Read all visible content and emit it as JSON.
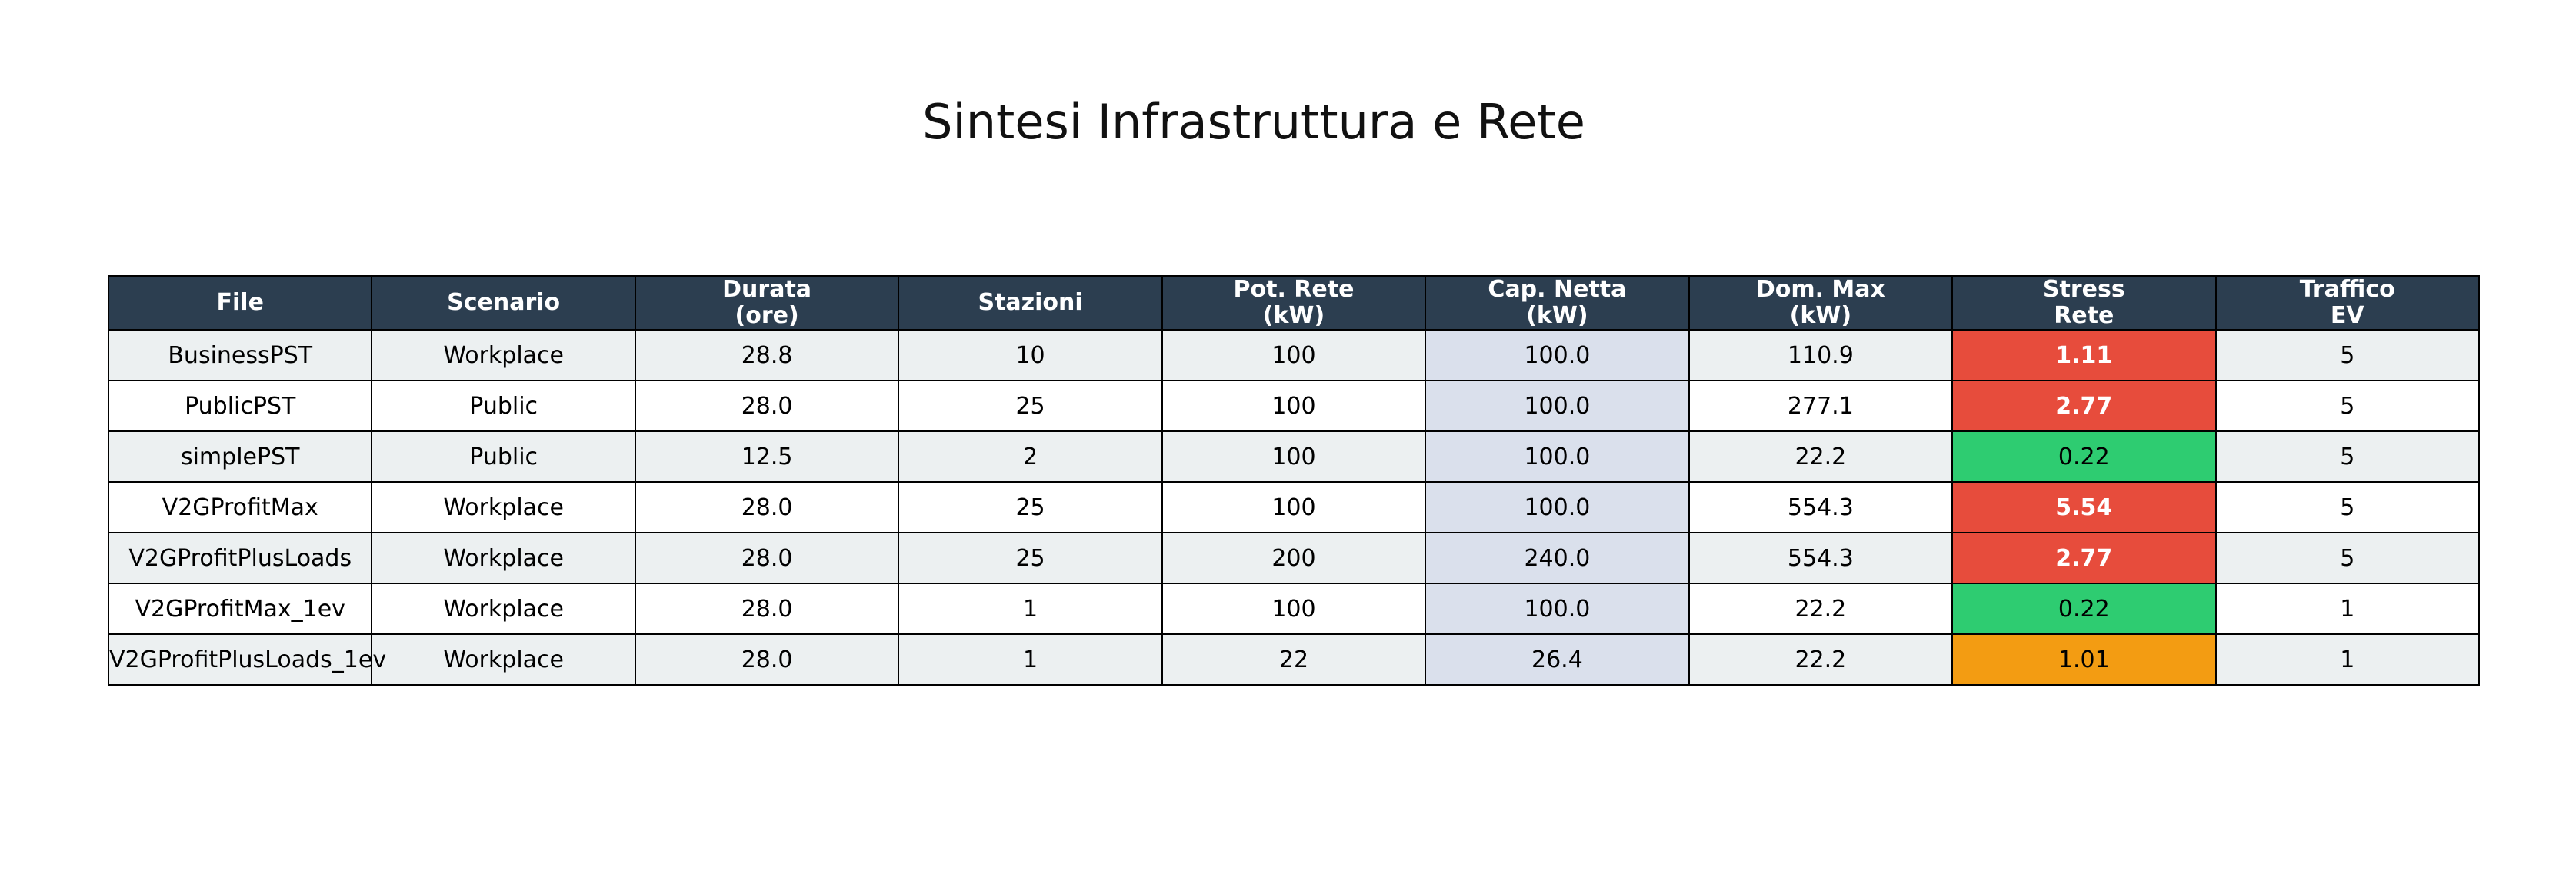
{
  "title": "Sintesi Infrastruttura e Rete",
  "columns": [
    {
      "line1": "File",
      "line2": ""
    },
    {
      "line1": "Scenario",
      "line2": ""
    },
    {
      "line1": "Durata",
      "line2": "(ore)"
    },
    {
      "line1": "Stazioni",
      "line2": ""
    },
    {
      "line1": "Pot. Rete",
      "line2": "(kW)"
    },
    {
      "line1": "Cap. Netta",
      "line2": "(kW)"
    },
    {
      "line1": "Dom. Max",
      "line2": "(kW)"
    },
    {
      "line1": "Stress",
      "line2": "Rete"
    },
    {
      "line1": "Traffico",
      "line2": "EV"
    }
  ],
  "rows": [
    [
      "BusinessPST",
      "Workplace",
      "28.8",
      "10",
      "100",
      "100.0",
      "110.9",
      "1.11",
      "5"
    ],
    [
      "PublicPST",
      "Public",
      "28.0",
      "25",
      "100",
      "100.0",
      "277.1",
      "2.77",
      "5"
    ],
    [
      "simplePST",
      "Public",
      "12.5",
      "2",
      "100",
      "100.0",
      "22.2",
      "0.22",
      "5"
    ],
    [
      "V2GProfitMax",
      "Workplace",
      "28.0",
      "25",
      "100",
      "100.0",
      "554.3",
      "5.54",
      "5"
    ],
    [
      "V2GProfitPlusLoads",
      "Workplace",
      "28.0",
      "25",
      "200",
      "240.0",
      "554.3",
      "2.77",
      "5"
    ],
    [
      "V2GProfitMax_1ev",
      "Workplace",
      "28.0",
      "1",
      "100",
      "100.0",
      "22.2",
      "0.22",
      "1"
    ],
    [
      "V2GProfitPlusLoads_1ev",
      "Workplace",
      "28.0",
      "1",
      "22",
      "26.4",
      "22.2",
      "1.01",
      "1"
    ]
  ],
  "colors": {
    "header_bg": "#2c3e50",
    "row_alt": "#ecf0f1",
    "cap_col": "#dae0ec",
    "stress_high": "#e74c3c",
    "stress_low": "#2ecc71",
    "stress_mid": "#f39c12"
  },
  "chart_data": {
    "type": "table",
    "title": "Sintesi Infrastruttura e Rete",
    "columns": [
      "File",
      "Scenario",
      "Durata (ore)",
      "Stazioni",
      "Pot. Rete (kW)",
      "Cap. Netta (kW)",
      "Dom. Max (kW)",
      "Stress Rete",
      "Traffico EV"
    ],
    "rows": [
      [
        "BusinessPST",
        "Workplace",
        28.8,
        10,
        100,
        100.0,
        110.9,
        1.11,
        5
      ],
      [
        "PublicPST",
        "Public",
        28.0,
        25,
        100,
        100.0,
        277.1,
        2.77,
        5
      ],
      [
        "simplePST",
        "Public",
        12.5,
        2,
        100,
        100.0,
        22.2,
        0.22,
        5
      ],
      [
        "V2GProfitMax",
        "Workplace",
        28.0,
        25,
        100,
        100.0,
        554.3,
        5.54,
        5
      ],
      [
        "V2GProfitPlusLoads",
        "Workplace",
        28.0,
        25,
        200,
        240.0,
        554.3,
        2.77,
        5
      ],
      [
        "V2GProfitMax_1ev",
        "Workplace",
        28.0,
        1,
        100,
        100.0,
        22.2,
        0.22,
        1
      ],
      [
        "V2GProfitPlusLoads_1ev",
        "Workplace",
        28.0,
        1,
        22,
        26.4,
        22.2,
        1.01,
        1
      ]
    ],
    "stress_levels": [
      "high",
      "high",
      "low",
      "high",
      "high",
      "low",
      "mid"
    ]
  }
}
